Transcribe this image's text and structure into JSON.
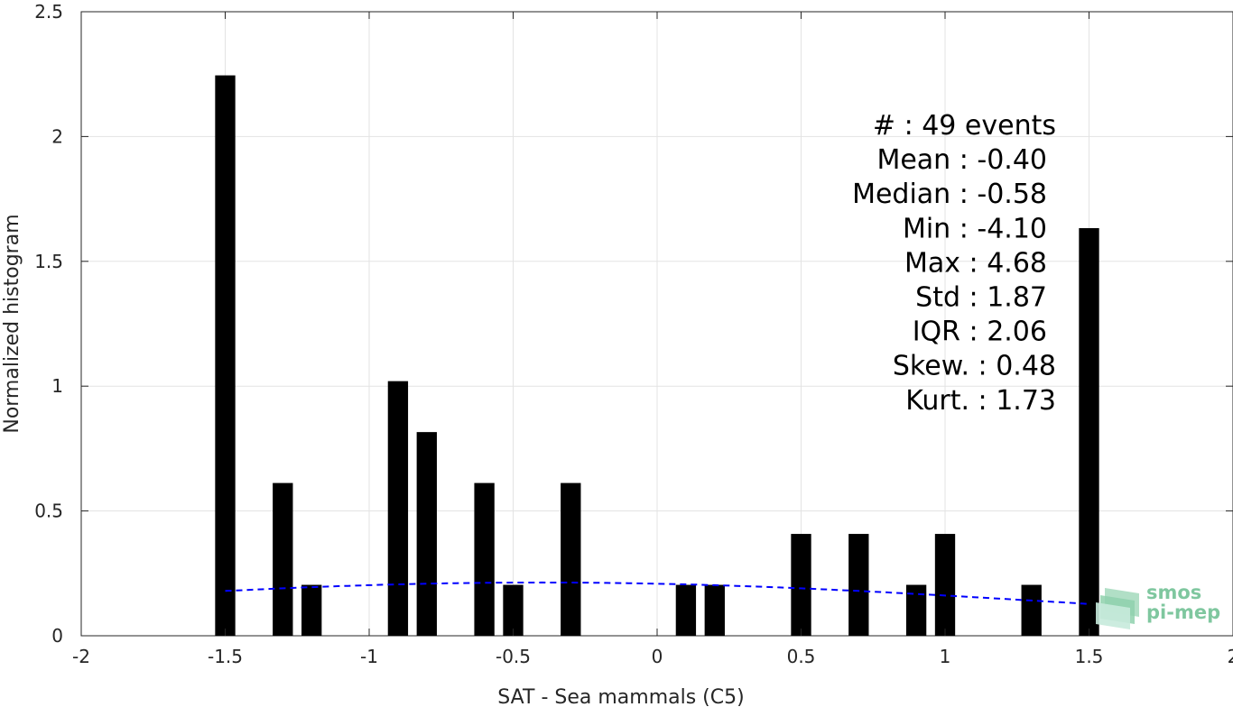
{
  "chart_data": {
    "type": "bar",
    "xlabel": "SAT - Sea mammals (C5)",
    "ylabel": "Normalized histogram",
    "xlim": [
      -2,
      2
    ],
    "ylim": [
      0,
      2.5
    ],
    "grid": true,
    "bar_width": 0.07,
    "xticks": [
      -2,
      -1.5,
      -1,
      -0.5,
      0,
      0.5,
      1,
      1.5,
      2
    ],
    "xtick_labels": [
      "-2",
      "-1.5",
      "-1",
      "-0.5",
      "0",
      "0.5",
      "1",
      "1.5",
      "2"
    ],
    "yticks": [
      0,
      0.5,
      1,
      1.5,
      2,
      2.5
    ],
    "ytick_labels": [
      "0",
      "0.5",
      "1",
      "1.5",
      "2",
      "2.5"
    ],
    "bars": [
      {
        "x": -1.5,
        "y": 2.245
      },
      {
        "x": -1.3,
        "y": 0.612
      },
      {
        "x": -1.2,
        "y": 0.204
      },
      {
        "x": -0.9,
        "y": 1.02
      },
      {
        "x": -0.8,
        "y": 0.816
      },
      {
        "x": -0.6,
        "y": 0.612
      },
      {
        "x": -0.5,
        "y": 0.204
      },
      {
        "x": -0.3,
        "y": 0.612
      },
      {
        "x": 0.1,
        "y": 0.204
      },
      {
        "x": 0.2,
        "y": 0.204
      },
      {
        "x": 0.5,
        "y": 0.408
      },
      {
        "x": 0.7,
        "y": 0.408
      },
      {
        "x": 0.9,
        "y": 0.204
      },
      {
        "x": 1.0,
        "y": 0.408
      },
      {
        "x": 1.3,
        "y": 0.204
      },
      {
        "x": 1.5,
        "y": 1.633
      }
    ],
    "fit_curve": {
      "style": "dashed",
      "color": "#0000ff",
      "mean": -0.4,
      "std": 1.87,
      "x_range": [
        -1.5,
        1.5
      ]
    },
    "annotations": [
      {
        "label": "#  : 49 events",
        "value": ""
      },
      {
        "label": "Mean : -0.40",
        "value": ""
      },
      {
        "label": "Median : -0.58",
        "value": ""
      },
      {
        "label": "Min : -4.10",
        "value": ""
      },
      {
        "label": "Max : 4.68",
        "value": ""
      },
      {
        "label": "Std : 1.87",
        "value": ""
      },
      {
        "label": "IQR : 2.06",
        "value": ""
      },
      {
        "label": "Skew. : 0.48",
        "value": ""
      },
      {
        "label": "Kurt. : 1.73",
        "value": ""
      }
    ]
  },
  "logo": {
    "line1": "smos",
    "line2": "pi-mep"
  }
}
